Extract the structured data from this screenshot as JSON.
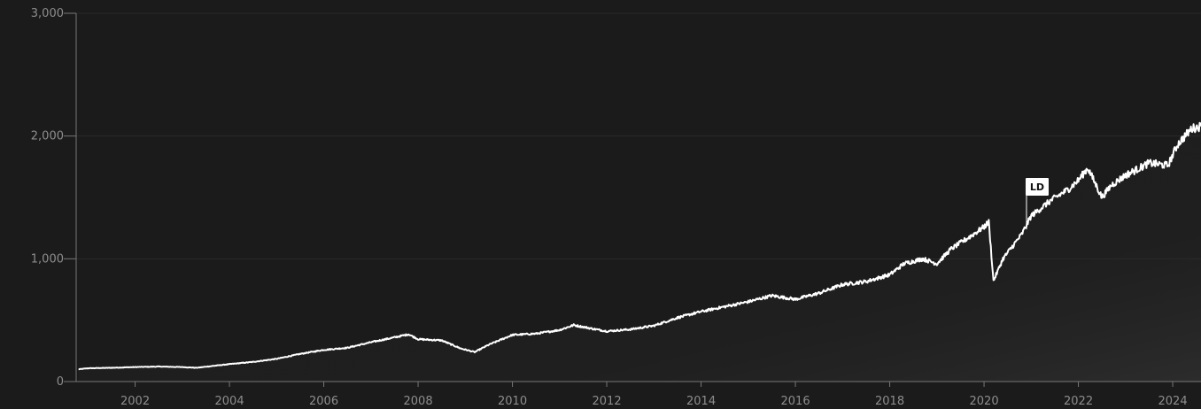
{
  "chart_data": {
    "type": "line",
    "title": "",
    "xlabel": "",
    "ylabel": "",
    "x_tick_labels": [
      "2002",
      "2004",
      "2006",
      "2008",
      "2010",
      "2012",
      "2014",
      "2016",
      "2018",
      "2020",
      "2022",
      "2024"
    ],
    "y_tick_labels": [
      "0",
      "1,000",
      "2,000",
      "3,000"
    ],
    "y_ticks": [
      0,
      1000,
      2000,
      3000
    ],
    "x_ticks": [
      2002,
      2004,
      2006,
      2008,
      2010,
      2012,
      2014,
      2016,
      2018,
      2020,
      2022,
      2024
    ],
    "xlim": [
      2000.75,
      2024.6
    ],
    "ylim": [
      0,
      3000
    ],
    "grid": true,
    "series": [
      {
        "values": [
          [
            2000.8,
            100
          ],
          [
            2001.0,
            108
          ],
          [
            2001.5,
            112
          ],
          [
            2002.0,
            118
          ],
          [
            2002.5,
            122
          ],
          [
            2003.0,
            118
          ],
          [
            2003.3,
            112
          ],
          [
            2003.6,
            125
          ],
          [
            2004.0,
            142
          ],
          [
            2004.5,
            160
          ],
          [
            2005.0,
            185
          ],
          [
            2005.5,
            225
          ],
          [
            2006.0,
            258
          ],
          [
            2006.5,
            275
          ],
          [
            2007.0,
            320
          ],
          [
            2007.5,
            360
          ],
          [
            2007.8,
            385
          ],
          [
            2008.0,
            345
          ],
          [
            2008.5,
            335
          ],
          [
            2008.9,
            270
          ],
          [
            2009.2,
            240
          ],
          [
            2009.5,
            300
          ],
          [
            2010.0,
            380
          ],
          [
            2010.5,
            390
          ],
          [
            2011.0,
            420
          ],
          [
            2011.3,
            460
          ],
          [
            2011.7,
            430
          ],
          [
            2012.0,
            410
          ],
          [
            2012.5,
            425
          ],
          [
            2013.0,
            455
          ],
          [
            2013.5,
            520
          ],
          [
            2014.0,
            570
          ],
          [
            2014.5,
            610
          ],
          [
            2015.0,
            650
          ],
          [
            2015.5,
            700
          ],
          [
            2016.0,
            670
          ],
          [
            2016.5,
            720
          ],
          [
            2017.0,
            790
          ],
          [
            2017.5,
            815
          ],
          [
            2018.0,
            870
          ],
          [
            2018.3,
            960
          ],
          [
            2018.7,
            1000
          ],
          [
            2019.0,
            960
          ],
          [
            2019.3,
            1080
          ],
          [
            2019.7,
            1180
          ],
          [
            2020.0,
            1260
          ],
          [
            2020.1,
            1300
          ],
          [
            2020.2,
            820
          ],
          [
            2020.4,
            1000
          ],
          [
            2020.8,
            1200
          ],
          [
            2021.0,
            1350
          ],
          [
            2021.4,
            1470
          ],
          [
            2021.8,
            1570
          ],
          [
            2022.0,
            1640
          ],
          [
            2022.2,
            1740
          ],
          [
            2022.5,
            1500
          ],
          [
            2022.7,
            1600
          ],
          [
            2023.0,
            1680
          ],
          [
            2023.5,
            1780
          ],
          [
            2023.9,
            1760
          ],
          [
            2024.1,
            1930
          ],
          [
            2024.4,
            2060
          ],
          [
            2024.6,
            2080
          ]
        ]
      }
    ],
    "annotations": [
      {
        "label": "LD",
        "x": 2020.9,
        "y": 1240
      }
    ]
  }
}
